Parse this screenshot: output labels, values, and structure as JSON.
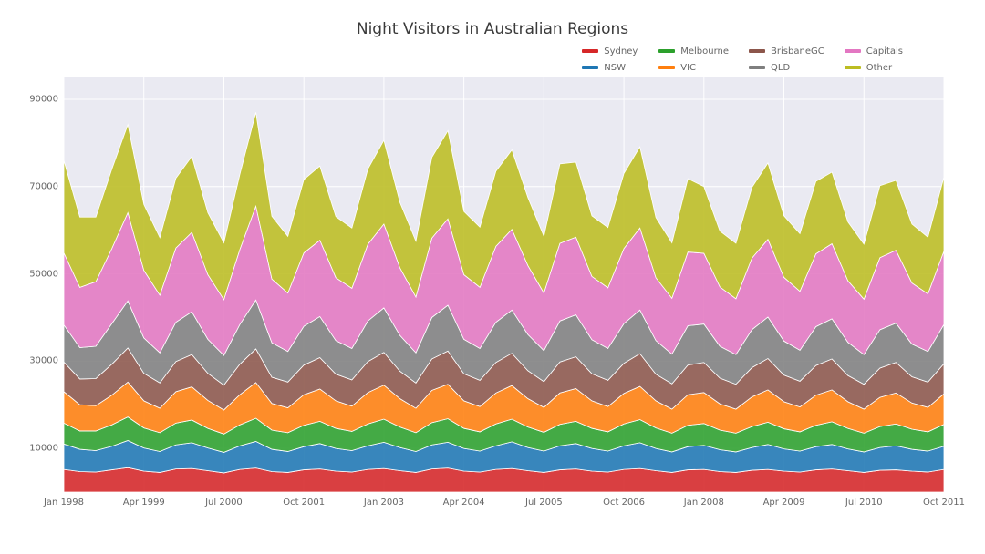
{
  "chart": {
    "type": "area",
    "title": "Night Visitors in Australian Regions",
    "title_fontsize": 17,
    "background_color": "#ffffff",
    "plot_background_color": "#eaeaf2",
    "grid_color": "#ffffff",
    "grid_width": 1,
    "ytick_label_fontsize": 10,
    "xtick_label_fontsize": 10,
    "axis_label_color": "#666666",
    "ylim": [
      0,
      95000
    ],
    "yticks": [
      10000,
      30000,
      50000,
      70000,
      90000
    ],
    "ytick_labels": [
      "10000",
      "30000",
      "50000",
      "70000",
      "90000"
    ],
    "x_range": [
      0,
      55
    ],
    "xticks": [
      0,
      5,
      10,
      15,
      20,
      25,
      30,
      35,
      40,
      45,
      50,
      55
    ],
    "xtick_labels": [
      "Jan 1998",
      "Apr 1999",
      "Jul 2000",
      "Oct 2001",
      "Jan 2003",
      "Apr 2004",
      "Jul 2005",
      "Oct 2006",
      "Jan 2008",
      "Apr 2009",
      "Jul 2010",
      "Oct 2011"
    ],
    "legend_position": "upper-right",
    "legend_fontsize": 10,
    "series_order": [
      "Sydney",
      "NSW",
      "Melbourne",
      "VIC",
      "BrisbaneGC",
      "QLD",
      "Capitals",
      "Other"
    ],
    "series_colors": {
      "Sydney": "#d62728",
      "NSW": "#1f77b4",
      "Melbourne": "#2ca02c",
      "VIC": "#ff7f0e",
      "BrisbaneGC": "#8c564b",
      "QLD": "#7f7f7f",
      "Capitals": "#e377c2",
      "Other": "#bcbd22"
    },
    "stroke_color": "#ffffff",
    "stroke_width": 0.8,
    "fill_opacity": 0.88,
    "n_points": 56,
    "series_values": {
      "Sydney": [
        5200,
        4700,
        4600,
        5100,
        5600,
        4800,
        4500,
        5300,
        5400,
        4900,
        4400,
        5200,
        5500,
        4700,
        4500,
        5100,
        5300,
        4800,
        4600,
        5200,
        5400,
        4900,
        4500,
        5300,
        5500,
        4800,
        4600,
        5200,
        5400,
        4900,
        4500,
        5100,
        5300,
        4800,
        4600,
        5200,
        5400,
        4900,
        4500,
        5100,
        5200,
        4700,
        4500,
        5000,
        5200,
        4800,
        4600,
        5100,
        5300,
        4900,
        4500,
        5000,
        5100,
        4800,
        4600,
        5200
      ],
      "NSW": [
        5800,
        5100,
        4900,
        5400,
        6200,
        5300,
        4800,
        5500,
        5900,
        5200,
        4700,
        5400,
        6100,
        5100,
        4800,
        5300,
        5800,
        5200,
        4900,
        5400,
        6000,
        5300,
        4800,
        5500,
        5900,
        5200,
        4800,
        5400,
        6100,
        5300,
        4900,
        5500,
        5800,
        5200,
        4800,
        5400,
        5900,
        5100,
        4700,
        5300,
        5500,
        5000,
        4700,
        5200,
        5700,
        5100,
        4800,
        5300,
        5600,
        5000,
        4700,
        5200,
        5500,
        5000,
        4800,
        5300
      ],
      "Melbourne": [
        4800,
        4200,
        4500,
        4900,
        5400,
        4600,
        4300,
        5000,
        5200,
        4500,
        4200,
        4800,
        5300,
        4400,
        4300,
        4900,
        5100,
        4600,
        4400,
        5000,
        5300,
        4700,
        4300,
        5100,
        5400,
        4600,
        4400,
        5000,
        5200,
        4700,
        4300,
        4900,
        5100,
        4600,
        4400,
        5000,
        5300,
        4700,
        4300,
        4900,
        5000,
        4500,
        4300,
        4800,
        5100,
        4600,
        4400,
        4900,
        5200,
        4700,
        4300,
        4800,
        5000,
        4600,
        4400,
        5000
      ],
      "VIC": [
        7200,
        6000,
        5800,
        6800,
        8000,
        6200,
        5600,
        7200,
        7600,
        6400,
        5500,
        6900,
        8200,
        6100,
        5700,
        7000,
        7400,
        6300,
        5800,
        7200,
        7800,
        6500,
        5600,
        7400,
        7900,
        6300,
        5800,
        7100,
        7700,
        6500,
        5700,
        7200,
        7500,
        6300,
        5800,
        7000,
        7600,
        6200,
        5500,
        7000,
        7100,
        6000,
        5500,
        6800,
        7400,
        6200,
        5700,
        6900,
        7300,
        6100,
        5500,
        6700,
        7100,
        6000,
        5600,
        7000
      ],
      "BrisbaneGC": [
        6800,
        5900,
        6200,
        7100,
        7800,
        6300,
        5800,
        6900,
        7400,
        6200,
        5700,
        7000,
        7700,
        6000,
        5900,
        6800,
        7200,
        6100,
        6000,
        7100,
        7500,
        6300,
        5800,
        7200,
        7600,
        6200,
        6000,
        7000,
        7400,
        6400,
        5900,
        7100,
        7300,
        6200,
        6000,
        6900,
        7500,
        6100,
        5800,
        6800,
        6900,
        5900,
        5700,
        6700,
        7200,
        6100,
        5900,
        6800,
        7100,
        6000,
        5700,
        6700,
        7000,
        6000,
        5800,
        6900
      ],
      "QLD": [
        8500,
        7200,
        7400,
        9300,
        10800,
        8100,
        6900,
        9000,
        9800,
        7800,
        6800,
        9100,
        11200,
        7900,
        7000,
        8900,
        9400,
        7700,
        7200,
        9300,
        10200,
        8200,
        6900,
        9500,
        10500,
        7900,
        7300,
        9200,
        9900,
        8300,
        7100,
        9400,
        9600,
        7800,
        7300,
        9100,
        10000,
        7700,
        6800,
        9000,
        8800,
        7300,
        6800,
        8700,
        9500,
        7800,
        7100,
        8900,
        9200,
        7600,
        6800,
        8800,
        9000,
        7500,
        7000,
        9000
      ],
      "Capitals": [
        16500,
        13800,
        14800,
        17200,
        20200,
        15500,
        13200,
        17000,
        18200,
        14800,
        12800,
        17200,
        21500,
        14600,
        13400,
        16800,
        17500,
        14400,
        13800,
        17600,
        19200,
        15500,
        12800,
        18200,
        19800,
        14800,
        14000,
        17400,
        18500,
        15800,
        13200,
        17800,
        17800,
        14500,
        13900,
        17200,
        18800,
        14400,
        12800,
        16900,
        16200,
        13600,
        12800,
        16400,
        17800,
        14600,
        13500,
        16700,
        17200,
        14100,
        12700,
        16500,
        16700,
        14000,
        13200,
        16800
      ],
      "Other": [
        21200,
        16100,
        14800,
        18200,
        20200,
        15100,
        13200,
        16000,
        17400,
        14200,
        13000,
        17200,
        21500,
        14400,
        13000,
        16800,
        17000,
        14000,
        13800,
        17200,
        19200,
        15000,
        12800,
        18500,
        20200,
        14500,
        13800,
        17200,
        18200,
        15600,
        13000,
        18200,
        17200,
        13900,
        13800,
        17200,
        18600,
        13800,
        12700,
        16800,
        15300,
        12800,
        12700,
        16200,
        17500,
        14100,
        13200,
        16600,
        16400,
        13500,
        12600,
        16500,
        16000,
        13500,
        13000,
        17000
      ]
    }
  }
}
